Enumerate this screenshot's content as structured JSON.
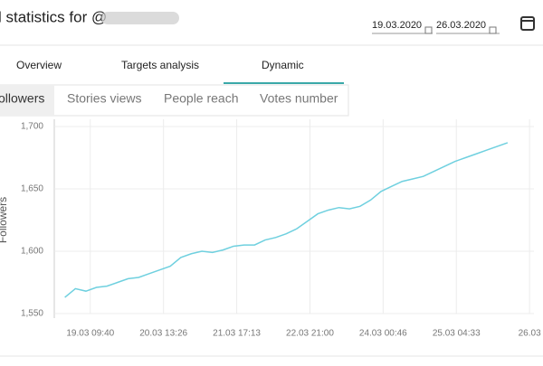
{
  "header": {
    "title": "l statistics for @",
    "date_from": "19.03.2020",
    "date_to": "26.03.2020"
  },
  "tabs": [
    "Overview",
    "Targets analysis",
    "Dynamic"
  ],
  "subtabs": [
    "ollowers",
    "Stories views",
    "People reach",
    "Votes number"
  ],
  "chart_data": {
    "type": "line",
    "y_label": "Followers",
    "color": "#6fd0df",
    "x": [
      "19.03 00:00",
      "19.03 04:00",
      "19.03 08:00",
      "19.03 12:00",
      "19.03 16:00",
      "19.03 20:00",
      "20.03 00:00",
      "20.03 04:00",
      "20.03 08:00",
      "20.03 12:00",
      "20.03 16:00",
      "20.03 20:00",
      "21.03 00:00",
      "21.03 04:00",
      "21.03 08:00",
      "21.03 12:00",
      "21.03 16:00",
      "21.03 20:00",
      "22.03 00:00",
      "22.03 04:00",
      "22.03 08:00",
      "22.03 12:00",
      "22.03 16:00",
      "22.03 20:00",
      "23.03 00:00",
      "23.03 04:00",
      "23.03 08:00",
      "23.03 12:00",
      "23.03 16:00",
      "23.03 20:00",
      "24.03 00:00",
      "24.03 04:00",
      "24.03 08:00",
      "24.03 12:00",
      "24.03 16:00",
      "24.03 20:00",
      "25.03 00:00",
      "25.03 04:00",
      "25.03 08:00",
      "25.03 12:00",
      "25.03 16:00",
      "25.03 20:00",
      "26.03 00:00"
    ],
    "series": [
      {
        "name": "Followers",
        "color": "#6fd0df",
        "values": [
          1563,
          1570,
          1568,
          1571,
          1572,
          1575,
          1578,
          1579,
          1582,
          1585,
          1588,
          1595,
          1598,
          1600,
          1599,
          1601,
          1604,
          1605,
          1605,
          1609,
          1611,
          1614,
          1618,
          1624,
          1630,
          1633,
          1635,
          1634,
          1636,
          1641,
          1648,
          1652,
          1656,
          1658,
          1660,
          1664,
          1668,
          1672,
          1675,
          1678,
          1681,
          1684,
          1687
        ]
      }
    ],
    "xlim": [
      "18.03 20:00",
      "26.03 10:00"
    ],
    "xticks": [
      {
        "value": "19.03 09:40",
        "label": "19.03 09:40"
      },
      {
        "value": "20.03 13:26",
        "label": "20.03 13:26"
      },
      {
        "value": "21.03 17:13",
        "label": "21.03 17:13"
      },
      {
        "value": "22.03 21:00",
        "label": "22.03 21:00"
      },
      {
        "value": "24.03 00:46",
        "label": "24.03 00:46"
      },
      {
        "value": "25.03 04:33",
        "label": "25.03 04:33"
      },
      {
        "value": "26.03 08:20",
        "label": "26.03"
      }
    ],
    "ylim": [
      1550,
      1700
    ],
    "yticks": [
      {
        "value": 1550,
        "label": "1,550"
      },
      {
        "value": 1600,
        "label": "1,600"
      },
      {
        "value": 1650,
        "label": "1,650"
      },
      {
        "value": 1700,
        "label": "1,700"
      }
    ],
    "grid": true
  }
}
